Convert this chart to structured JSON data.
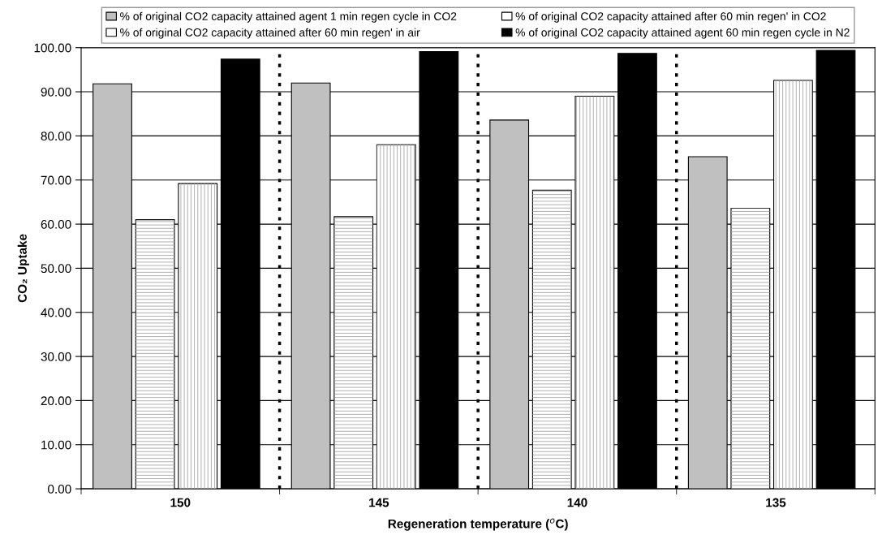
{
  "chart_data": {
    "type": "bar",
    "xlabel": "Regeneration temperature ($^{o}$C)",
    "ylabel": "CO₂ Uptake",
    "categories": [
      "150",
      "145",
      "140",
      "135"
    ],
    "series": [
      {
        "name": "% of original CO2 capacity attained agent 1 min regen cycle in CO2",
        "color": "#c0c0c0",
        "values": [
          91.8,
          92.0,
          83.6,
          75.3
        ]
      },
      {
        "name": "% of original CO2 capacity attained after 60 min regen' in CO2",
        "color": "#ffffff",
        "values": [
          61.0,
          61.7,
          67.7,
          63.6
        ]
      },
      {
        "name": "% of original CO2 capacity attained after 60 min regen' in air",
        "color": "#ffffff",
        "values": [
          69.2,
          78.0,
          89.0,
          92.6
        ]
      },
      {
        "name": "% of original CO2 capacity attained agent 60 min regen cycle in N2",
        "color": "#000000",
        "values": [
          97.4,
          99.1,
          98.7,
          99.4
        ]
      }
    ],
    "ylim": [
      0,
      100
    ],
    "yticks": [
      {
        "value": 0,
        "label": "0.00"
      },
      {
        "value": 10,
        "label": "10.00"
      },
      {
        "value": 20,
        "label": "20.00"
      },
      {
        "value": 30,
        "label": "30.00"
      },
      {
        "value": 40,
        "label": "40.00"
      },
      {
        "value": 50,
        "label": "50.00"
      },
      {
        "value": 60,
        "label": "60.00"
      },
      {
        "value": 70,
        "label": "70.00"
      },
      {
        "value": 80,
        "label": "80.00"
      },
      {
        "value": 90,
        "label": "90.00"
      },
      {
        "value": 100,
        "label": "100.00"
      }
    ],
    "grid": "y",
    "legend": "top"
  }
}
